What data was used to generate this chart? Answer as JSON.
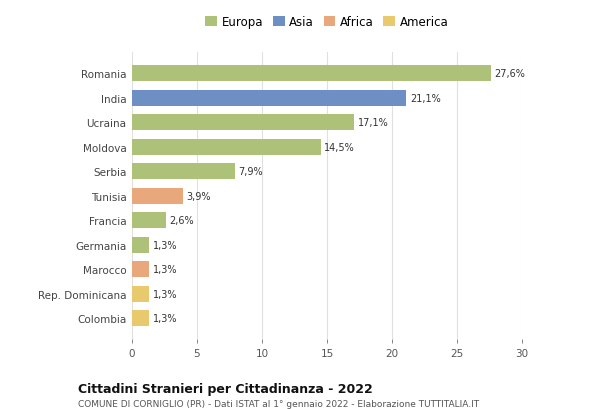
{
  "countries": [
    "Romania",
    "India",
    "Ucraina",
    "Moldova",
    "Serbia",
    "Tunisia",
    "Francia",
    "Germania",
    "Marocco",
    "Rep. Dominicana",
    "Colombia"
  ],
  "values": [
    27.6,
    21.1,
    17.1,
    14.5,
    7.9,
    3.9,
    2.6,
    1.3,
    1.3,
    1.3,
    1.3
  ],
  "labels": [
    "27,6%",
    "21,1%",
    "17,1%",
    "14,5%",
    "7,9%",
    "3,9%",
    "2,6%",
    "1,3%",
    "1,3%",
    "1,3%",
    "1,3%"
  ],
  "colors": [
    "#adc178",
    "#6e8fc4",
    "#adc178",
    "#adc178",
    "#adc178",
    "#e8a87c",
    "#adc178",
    "#adc178",
    "#e8a87c",
    "#e8c96e",
    "#e8c96e"
  ],
  "legend_labels": [
    "Europa",
    "Asia",
    "Africa",
    "America"
  ],
  "legend_colors": [
    "#adc178",
    "#6e8fc4",
    "#e8a87c",
    "#e8c96e"
  ],
  "title": "Cittadini Stranieri per Cittadinanza - 2022",
  "subtitle": "COMUNE DI CORNIGLIO (PR) - Dati ISTAT al 1° gennaio 2022 - Elaborazione TUTTITALIA.IT",
  "xlim": [
    0,
    30
  ],
  "xticks": [
    0,
    5,
    10,
    15,
    20,
    25,
    30
  ],
  "background_color": "#ffffff",
  "grid_color": "#e0e0e0",
  "bar_height": 0.65
}
